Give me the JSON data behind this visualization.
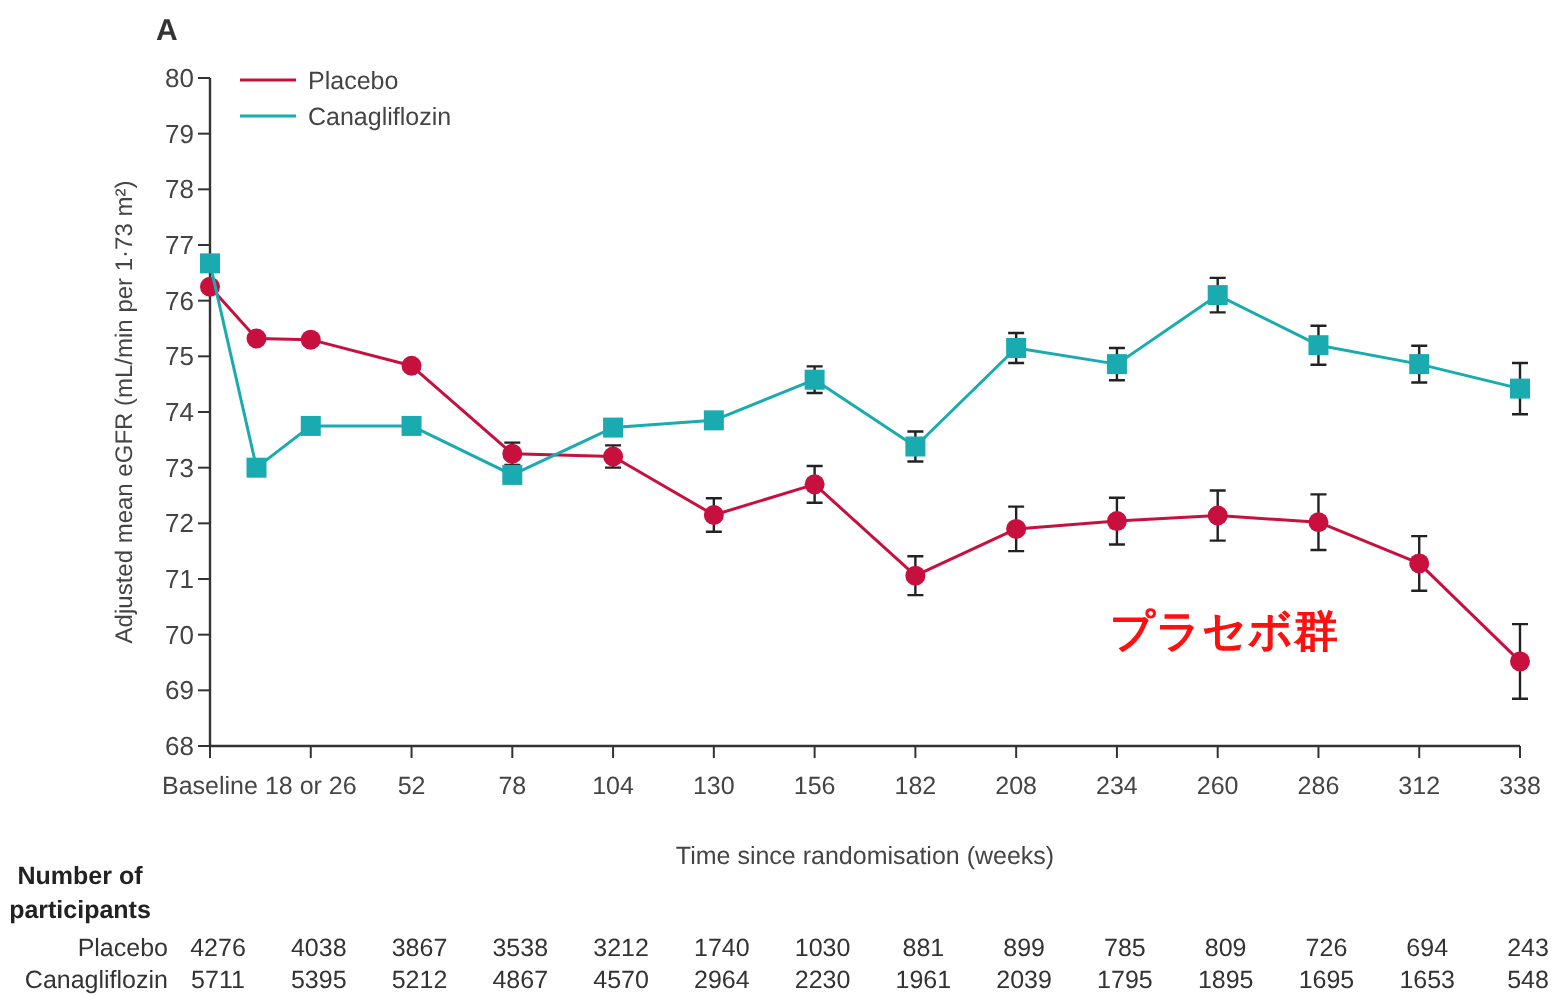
{
  "chart_data": {
    "type": "line",
    "xlabel": "Time since randomisation (weeks)",
    "ylabel": "Adjusted mean eGFR (mL/min per 1·73 m²)",
    "x": [
      0,
      12,
      26,
      52,
      78,
      104,
      130,
      156,
      182,
      208,
      234,
      260,
      286,
      312,
      338
    ],
    "xlim": [
      0,
      338
    ],
    "xticks": [
      {
        "value": 0,
        "label": "Baseline"
      },
      {
        "value": 26,
        "label": "18 or 26"
      },
      52,
      78,
      104,
      130,
      156,
      182,
      208,
      234,
      260,
      286,
      312,
      338
    ],
    "ylim": [
      68,
      80
    ],
    "yticks": [
      68,
      69,
      70,
      71,
      72,
      73,
      74,
      75,
      76,
      77,
      78,
      79,
      80
    ],
    "legend": "top left",
    "series": [
      {
        "name": "Placebo",
        "color": "#c8103e",
        "marker": "circle",
        "values": [
          76.25,
          75.32,
          75.3,
          74.83,
          73.25,
          73.2,
          72.15,
          72.7,
          71.06,
          71.9,
          72.04,
          72.14,
          72.02,
          71.28,
          69.52
        ],
        "errors": [
          null,
          null,
          null,
          null,
          0.2,
          0.2,
          0.3,
          0.33,
          0.35,
          0.4,
          0.42,
          0.45,
          0.5,
          0.49,
          0.67
        ]
      },
      {
        "name": "Canagliflozin",
        "color": "#1aabb0",
        "marker": "square",
        "values": [
          76.67,
          73.0,
          73.75,
          73.75,
          72.87,
          73.72,
          73.85,
          74.58,
          73.38,
          75.15,
          74.86,
          76.1,
          75.2,
          74.86,
          74.42
        ],
        "errors": [
          null,
          null,
          null,
          null,
          null,
          null,
          null,
          0.24,
          0.27,
          0.27,
          0.29,
          0.31,
          0.35,
          0.33,
          0.46
        ]
      }
    ],
    "annotations": [
      "A",
      "Number of participants",
      "Placebo",
      "4276",
      "4038",
      "3867",
      "3538",
      "3212",
      "1740",
      "1030",
      "881",
      "899",
      "785",
      "809",
      "726",
      "694",
      "243",
      "Canagliflozin",
      "5711",
      "5395",
      "5212",
      "4867",
      "4570",
      "2964",
      "2230",
      "1961",
      "2039",
      "1795",
      "1895",
      "1695",
      "1653",
      "548",
      "プラセボ群"
    ]
  }
}
